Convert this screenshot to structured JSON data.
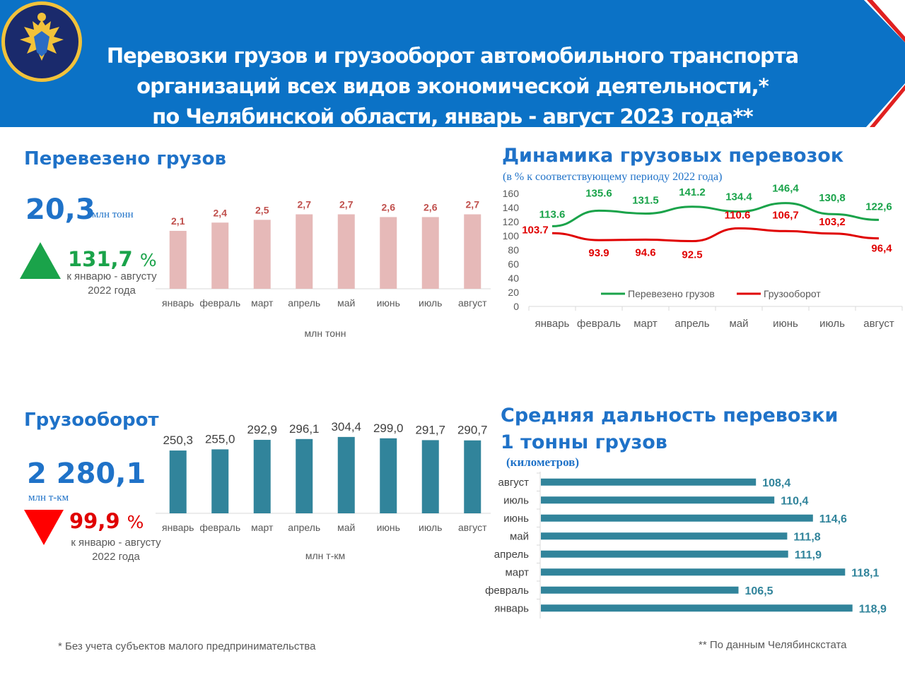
{
  "header": {
    "title_line1": "Перевозки грузов и грузооборот автомобильного транспорта",
    "title_line2": "организаций всех видов экономической деятельности,*",
    "title_line3": "по Челябинской области, январь - август 2023 года**",
    "colors": {
      "banner": "#0b72c6",
      "banner_light": "#ffffff",
      "accent_red": "#e02020"
    },
    "emblem_icon": "emblem-icon"
  },
  "cargo": {
    "title": "Перевезено грузов",
    "total": "20,3",
    "total_unit": "млн тонн",
    "change_pct": "131,7",
    "pct_sign": "%",
    "change_caption_line1": "к январю - августу",
    "change_caption_line2": "2022 года",
    "trend_icon": "triangle-up-icon",
    "trend_color": "#1aa34a"
  },
  "turnover": {
    "title": "Грузооборот",
    "total": "2 280,1",
    "total_unit": "млн т-км",
    "change_pct": "99,9",
    "pct_sign": "%",
    "change_caption_line1": "к январю - августу",
    "change_caption_line2": "2022 года",
    "trend_icon": "triangle-down-icon",
    "trend_color": "#ff0000"
  },
  "dynamics": {
    "title": "Динамика грузовых перевозок",
    "subtitle": "(в % к соответствующему периоду 2022 года)"
  },
  "distance": {
    "title_line1": "Средняя дальность перевозки",
    "title_line2": "1 тонны грузов",
    "subtitle": "(километров)"
  },
  "footnotes": {
    "left": "* Без учета субъектов малого предпринимательства",
    "right": "** По данным Челябинскстата"
  },
  "chart_data": [
    {
      "type": "bar",
      "id": "cargo",
      "categories": [
        "январь",
        "февраль",
        "март",
        "апрель",
        "май",
        "июнь",
        "июль",
        "август"
      ],
      "values": [
        2.1,
        2.4,
        2.5,
        2.7,
        2.7,
        2.6,
        2.6,
        2.7
      ],
      "labels": [
        "2,1",
        "2,4",
        "2,5",
        "2,7",
        "2,7",
        "2,6",
        "2,6",
        "2,7"
      ],
      "xlabel": "млн тонн",
      "ylim": [
        0,
        3.2
      ],
      "color": "#e6b9b8",
      "label_color": "#c0504d"
    },
    {
      "type": "bar",
      "id": "turnover",
      "categories": [
        "январь",
        "февраль",
        "март",
        "апрель",
        "май",
        "июнь",
        "июль",
        "август"
      ],
      "values": [
        250.3,
        255.0,
        292.9,
        296.1,
        304.4,
        299.0,
        291.7,
        290.7
      ],
      "labels": [
        "250,3",
        "255,0",
        "292,9",
        "296,1",
        "304,4",
        "299,0",
        "291,7",
        "290,7"
      ],
      "xlabel": "млн т-км",
      "ylim": [
        0,
        380
      ],
      "color": "#31849b",
      "label_color": "#404040"
    },
    {
      "type": "line",
      "id": "dynamics",
      "categories": [
        "январь",
        "февраль",
        "март",
        "апрель",
        "май",
        "июнь",
        "июль",
        "август"
      ],
      "series": [
        {
          "name": "Перевезено грузов",
          "values": [
            113.6,
            135.6,
            131.5,
            141.2,
            134.4,
            146.4,
            130.8,
            122.6
          ],
          "labels": [
            "113.6",
            "135.6",
            "131.5",
            "141.2",
            "134.4",
            "146,4",
            "130,8",
            "122,6"
          ],
          "color": "#1aa34a"
        },
        {
          "name": "Грузооборот",
          "values": [
            103.7,
            93.9,
            94.6,
            92.5,
            110.6,
            106.7,
            103.2,
            96.4
          ],
          "labels": [
            "103.7",
            "93.9",
            "94.6",
            "92.5",
            "110.6",
            "106,7",
            "103,2",
            "96,4"
          ],
          "color": "#e00000"
        }
      ],
      "yticks": [
        "0",
        "20",
        "40",
        "60",
        "80",
        "100",
        "120",
        "140",
        "160"
      ],
      "ylim": [
        0,
        160
      ],
      "legend": "bottom"
    },
    {
      "type": "bar",
      "orientation": "horizontal",
      "id": "distance",
      "categories": [
        "август",
        "июль",
        "июнь",
        "май",
        "апрель",
        "март",
        "февраль",
        "январь"
      ],
      "values": [
        108.4,
        110.4,
        114.6,
        111.8,
        111.9,
        118.1,
        106.5,
        118.9
      ],
      "labels": [
        "108,4",
        "110,4",
        "114,6",
        "111,8",
        "111,9",
        "118,1",
        "106,5",
        "118,9"
      ],
      "xlim": [
        85,
        120
      ],
      "color": "#31849b",
      "label_color": "#31849b"
    }
  ]
}
